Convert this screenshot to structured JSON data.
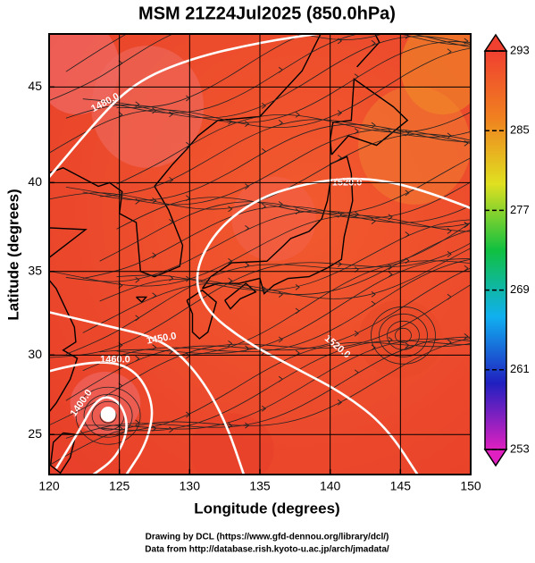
{
  "chart_data": {
    "type": "map",
    "title": "MSM 21Z24Jul2025 (850.0hPa)",
    "xlabel": "Longitude (degrees)",
    "ylabel": "Latitude  (degrees)",
    "projection": "mercator",
    "xlim": [
      120,
      150
    ],
    "xticks": [
      120,
      125,
      130,
      135,
      140,
      145,
      150
    ],
    "ylim": [
      22.4,
      47.6
    ],
    "yticks": [
      25,
      30,
      35,
      40,
      45
    ],
    "grid": true,
    "colorbar": {
      "lim": [
        253,
        293
      ],
      "ticks": [
        253,
        261,
        269,
        277,
        285,
        293
      ],
      "colors": [
        "#e020c0",
        "#2020c0",
        "#10b0f0",
        "#10c040",
        "#e0e020",
        "#f08020",
        "#f04030"
      ]
    },
    "contour_labels": [
      "1480.0",
      "1520.0",
      "1450.0",
      "1520.0",
      "1460.0",
      "1400.0"
    ],
    "credits": [
      "Drawing by DCL (https://www.gfd-dennou.org/library/dcl/)",
      "Data from http://database.rish.kyoto-u.ac.jp/arch/jmadata/"
    ]
  }
}
